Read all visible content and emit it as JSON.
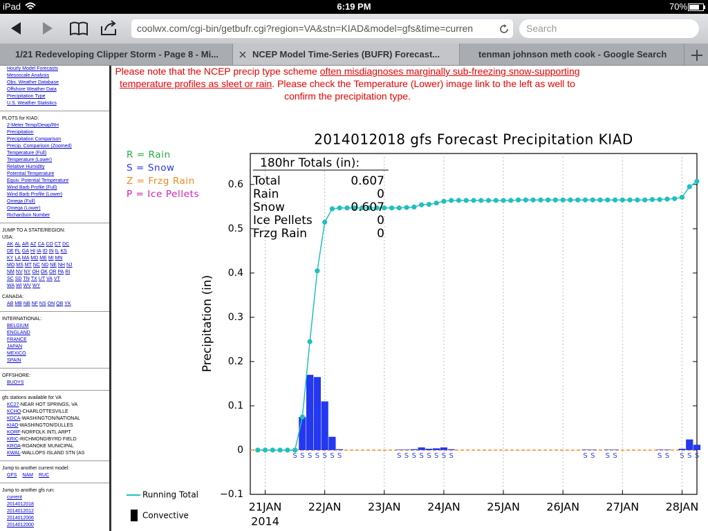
{
  "status_bar": {
    "device": "iPad",
    "time": "6:19 PM",
    "battery": "70%"
  },
  "browser": {
    "url": "coolwx.com/cgi-bin/getbufr.cgi?region=VA&stn=KIAD&model=gfs&time=curren",
    "search_placeholder": "Search",
    "tabs": [
      "1/21 Redeveloping Clipper Storm - Page 8 - Mi...",
      "NCEP Model Time-Series (BUFR) Forecast...",
      "tenman johnson meth cook - Google Search"
    ]
  },
  "sidebar": {
    "top_links": [
      "Hourly Model Forecasts",
      "Mesoscale Analysis",
      "Obs. Weather Database",
      "Offshore Weather Data",
      "Precipitation Type",
      "U.S. Weather Statistics"
    ],
    "plots_heading": "PLOTS for KIAD:",
    "plots": [
      "2-Meter Temp/Dewp/RH",
      "Precipitation",
      "Precipitation Comparison",
      "Precip. Comparison (Zoomed)",
      "Temperature (Full)",
      "Temperature (Lower)",
      "Relative Humidity",
      "Potential Temperature",
      "Equiv. Potential Temperature",
      "Wind Barb Profile (Full)",
      "Wind Barb Profile (Lower)",
      "Omega (Full)",
      "Omega (Lower)",
      "Richardson Number"
    ],
    "jump_heading": "JUMP TO A STATE/REGION:",
    "regions": [
      {
        "label": "USA:",
        "rows": [
          [
            "AK",
            "AL",
            "AR",
            "AZ",
            "CA",
            "CO",
            "CT",
            "DC"
          ],
          [
            "DE",
            "FL",
            "GA",
            "HI",
            "IA",
            "ID",
            "IN",
            "IL",
            "KS"
          ],
          [
            "KY",
            "LA",
            "MA",
            "MD",
            "ME",
            "MI",
            "MN"
          ],
          [
            "MO",
            "MS",
            "MT",
            "NC",
            "ND",
            "NE",
            "NH",
            "NJ"
          ],
          [
            "NM",
            "NV",
            "NY",
            "OH",
            "OK",
            "OR",
            "PA",
            "RI"
          ],
          [
            "SC",
            "SD",
            "TN",
            "TX",
            "UT",
            "VA",
            "VT"
          ],
          [
            "WA",
            "WI",
            "WV",
            "WY"
          ]
        ]
      },
      {
        "label": "CANADA:",
        "rows": [
          [
            "AB",
            "MB",
            "NB",
            "NF",
            "NS",
            "ON",
            "QB",
            "YK"
          ]
        ]
      },
      {
        "label": "INTERNATIONAL:",
        "rows": [
          [
            "BELGIUM"
          ],
          [
            "ENGLAND"
          ],
          [
            "FRANCE"
          ],
          [
            "JAPAN"
          ],
          [
            "MEXICO"
          ],
          [
            "SPAIN"
          ]
        ]
      },
      {
        "label": "OFFSHORE:",
        "rows": [
          [
            "BUOYS"
          ]
        ]
      }
    ],
    "stations_heading": "gfs stations available for VA",
    "stations": [
      {
        "code": "KC27",
        "name": "-NEAR HOT SPRINGS, VA"
      },
      {
        "code": "KCHO",
        "name": "-CHARLOTTESVILLE"
      },
      {
        "code": "KDCA",
        "name": "-WASHINGTON/NATIONAL"
      },
      {
        "code": "KIAD",
        "name": "-WASHINGTON/DULLES"
      },
      {
        "code": "KORF",
        "name": "-NORFOLK INTL ARPT"
      },
      {
        "code": "KRIC",
        "name": "-RICHMOND/BYRD FIELD"
      },
      {
        "code": "KROA",
        "name": "-ROANOKE MUNICIPAL"
      },
      {
        "code": "KWAL",
        "name": "-WALLOPS ISLAND STN (AS"
      }
    ],
    "models_heading": "Jump to another current model:",
    "models": [
      "GFS",
      "NAM",
      "RUC"
    ],
    "runs_heading": "Jump to another gfs run:",
    "runs": [
      "current",
      "2014012018",
      "2014012012",
      "2014012006",
      "2014012000"
    ]
  },
  "notice": {
    "before": "Please note that the NCEP precip type scheme ",
    "link": "often misdiagnoses marginally sub-freezing snow-supporting temperature profiles as sleet or rain",
    "after": ". Please check the Temperature (Lower) image link to the left as well to confirm the precipitation type."
  },
  "chart_data": {
    "type": "line",
    "title": "2014012018 gfs Forecast Precipitation KIAD",
    "y_label": "Precipitation (in)",
    "ylim": [
      -0.1,
      0.67
    ],
    "yticks": [
      {
        "value": -0.1,
        "label": "−0.1"
      },
      0,
      0.1,
      0.2,
      0.3,
      0.4,
      0.5,
      0.6
    ],
    "xlim": [
      -0.25,
      7.25
    ],
    "xticks": [
      {
        "value": 0,
        "label": "21JAN"
      },
      {
        "value": 1,
        "label": "22JAN"
      },
      {
        "value": 2,
        "label": "23JAN"
      },
      {
        "value": 3,
        "label": "24JAN"
      },
      {
        "value": 4,
        "label": "25JAN"
      },
      {
        "value": 5,
        "label": "26JAN"
      },
      {
        "value": 6,
        "label": "27JAN"
      },
      {
        "value": 7,
        "label": "28JAN"
      }
    ],
    "x_year": "2014",
    "grid": true,
    "series": [
      {
        "name": "Running Total",
        "type": "line",
        "color": "#1fc0bd",
        "x": [
          -0.125,
          0,
          0.125,
          0.25,
          0.375,
          0.5,
          0.625,
          0.75,
          0.875,
          1,
          1.125,
          1.25,
          1.375,
          1.5,
          1.625,
          1.75,
          1.875,
          2,
          2.125,
          2.25,
          2.375,
          2.5,
          2.625,
          2.75,
          2.875,
          3,
          3.125,
          3.25,
          3.375,
          3.5,
          3.625,
          3.75,
          3.875,
          4,
          4.125,
          4.25,
          4.375,
          4.5,
          4.625,
          4.75,
          4.875,
          5,
          5.125,
          5.25,
          5.375,
          5.5,
          5.625,
          5.75,
          5.875,
          6,
          6.125,
          6.25,
          6.375,
          6.5,
          6.625,
          6.75,
          6.875,
          7,
          7.125,
          7.25
        ],
        "values": [
          0,
          0,
          0,
          0,
          0,
          0,
          0.075,
          0.245,
          0.405,
          0.515,
          0.545,
          0.547,
          0.547,
          0.547,
          0.547,
          0.547,
          0.547,
          0.547,
          0.547,
          0.547,
          0.548,
          0.549,
          0.554,
          0.555,
          0.558,
          0.562,
          0.564,
          0.564,
          0.564,
          0.564,
          0.564,
          0.564,
          0.564,
          0.564,
          0.564,
          0.565,
          0.565,
          0.565,
          0.565,
          0.565,
          0.565,
          0.565,
          0.565,
          0.565,
          0.565,
          0.565,
          0.565,
          0.565,
          0.565,
          0.565,
          0.565,
          0.565,
          0.565,
          0.566,
          0.566,
          0.567,
          0.568,
          0.571,
          0.595,
          0.607
        ]
      },
      {
        "name": "Convective",
        "type": "bar",
        "color": "#000000",
        "x": [],
        "values": []
      }
    ],
    "precip_bars": {
      "color": "#2438f0",
      "x": [
        0.5,
        0.625,
        0.75,
        0.875,
        1,
        1.125,
        1.25,
        2.25,
        2.375,
        2.5,
        2.625,
        2.75,
        2.875,
        3,
        3.125,
        5.375,
        5.5,
        5.75,
        5.875,
        6.625,
        6.75,
        7,
        7.125,
        7.25
      ],
      "values": [
        0.001,
        0.075,
        0.17,
        0.165,
        0.11,
        0.03,
        0.002,
        0.001,
        0.001,
        0.002,
        0.006,
        0.003,
        0.004,
        0.006,
        0.002,
        0.001,
        0.001,
        0.001,
        0.001,
        0.001,
        0.001,
        0.003,
        0.024,
        0.012
      ],
      "types": [
        "S",
        "S",
        "S",
        "S",
        "S",
        "S",
        "S",
        "S",
        "S",
        "S",
        "S",
        "S",
        "S",
        "S",
        "S",
        "S",
        "S",
        "S",
        "S",
        "S",
        "S",
        "S",
        "S",
        "S"
      ]
    },
    "ptype_legend": [
      {
        "label": "R = Rain",
        "color": "#20b040"
      },
      {
        "label": "S = Snow",
        "color": "#2438f0"
      },
      {
        "label": "Z = Frzg Rain",
        "color": "#f08a20"
      },
      {
        "label": "P = Ice Pellets",
        "color": "#d020b0"
      }
    ],
    "totals": {
      "title": "180hr Totals (in):",
      "rows": [
        {
          "label": "Total",
          "value": 0.607
        },
        {
          "label": "Rain",
          "value": 0
        },
        {
          "label": "Snow",
          "value": 0.607
        },
        {
          "label": "Ice Pellets",
          "value": 0
        },
        {
          "label": "Frzg Rain",
          "value": 0
        }
      ]
    }
  }
}
